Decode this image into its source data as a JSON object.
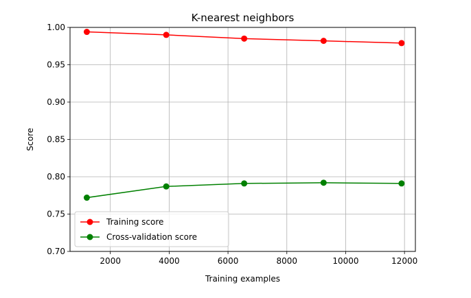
{
  "chart_data": {
    "type": "line",
    "title": "K-nearest neighbors",
    "xlabel": "Training examples",
    "ylabel": "Score",
    "xlim": [
      630,
      12370
    ],
    "ylim": [
      0.7,
      1.0
    ],
    "xticks": [
      2000,
      4000,
      6000,
      8000,
      10000,
      12000
    ],
    "yticks": [
      0.7,
      0.75,
      0.8,
      0.85,
      0.9,
      0.95,
      1.0
    ],
    "xtick_labels": [
      "2000",
      "4000",
      "6000",
      "8000",
      "10000",
      "12000"
    ],
    "ytick_labels": [
      "0.70",
      "0.75",
      "0.80",
      "0.85",
      "0.90",
      "0.95",
      "1.00"
    ],
    "grid": true,
    "legend_position": "lower-left",
    "x": [
      1200,
      3900,
      6550,
      9250,
      11900
    ],
    "series": [
      {
        "name": "Training score",
        "color": "#ff0000",
        "values": [
          0.994,
          0.99,
          0.985,
          0.982,
          0.979
        ]
      },
      {
        "name": "Cross-validation score",
        "color": "#008000",
        "values": [
          0.772,
          0.787,
          0.791,
          0.792,
          0.791
        ]
      }
    ]
  }
}
